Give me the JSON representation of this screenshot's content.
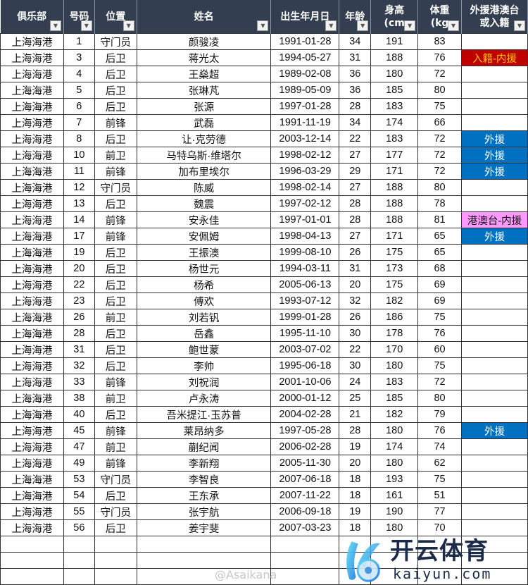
{
  "headers": [
    {
      "label": "俱乐部",
      "filter": "filter-active"
    },
    {
      "label": "号码",
      "filter": "dropdown"
    },
    {
      "label": "位置",
      "filter": "dropdown"
    },
    {
      "label": "姓名",
      "filter": "dropdown"
    },
    {
      "label": "出生年月日",
      "filter": "dropdown"
    },
    {
      "label": "年龄",
      "filter": "dropdown"
    },
    {
      "label": "身高\n(cm",
      "filter": "dropdown"
    },
    {
      "label": "体重\n(kg",
      "filter": "dropdown"
    },
    {
      "label": "外援港澳台\n或入籍",
      "filter": "dropdown"
    }
  ],
  "tag_colors": {
    "入籍-内援": "red",
    "外援": "blue",
    "港澳台-内援": "pink"
  },
  "colors": {
    "header_bg": "#333f50",
    "red": "#c00000",
    "blue": "#0070c0",
    "pink": "#ff99ff"
  },
  "rows": [
    [
      "上海海港",
      "1",
      "守门员",
      "颜骏凌",
      "1991-01-28",
      "34",
      "191",
      "83",
      ""
    ],
    [
      "上海海港",
      "3",
      "后卫",
      "蒋光太",
      "1994-05-27",
      "31",
      "188",
      "76",
      "入籍-内援"
    ],
    [
      "上海海港",
      "4",
      "后卫",
      "王燊超",
      "1989-02-08",
      "36",
      "180",
      "72",
      ""
    ],
    [
      "上海海港",
      "5",
      "后卫",
      "张琳芃",
      "1989-05-09",
      "36",
      "185",
      "80",
      ""
    ],
    [
      "上海海港",
      "6",
      "后卫",
      "张源",
      "1997-01-28",
      "28",
      "183",
      "75",
      ""
    ],
    [
      "上海海港",
      "7",
      "前锋",
      "武磊",
      "1991-11-19",
      "34",
      "174",
      "66",
      ""
    ],
    [
      "上海海港",
      "8",
      "后卫",
      "让·克劳德",
      "2003-12-14",
      "22",
      "183",
      "72",
      "外援"
    ],
    [
      "上海海港",
      "10",
      "前卫",
      "马特乌斯·维塔尔",
      "1998-02-12",
      "27",
      "177",
      "72",
      "外援"
    ],
    [
      "上海海港",
      "11",
      "前锋",
      "加布里埃尔",
      "1996-03-29",
      "29",
      "171",
      "72",
      "外援"
    ],
    [
      "上海海港",
      "12",
      "守门员",
      "陈威",
      "1998-02-14",
      "27",
      "188",
      "80",
      ""
    ],
    [
      "上海海港",
      "13",
      "后卫",
      "魏震",
      "1997-02-12",
      "28",
      "188",
      "78",
      ""
    ],
    [
      "上海海港",
      "14",
      "前锋",
      "安永佳",
      "1997-01-01",
      "28",
      "188",
      "81",
      "港澳台-内援"
    ],
    [
      "上海海港",
      "17",
      "前锋",
      "安佩姆",
      "1998-04-13",
      "27",
      "171",
      "65",
      "外援"
    ],
    [
      "上海海港",
      "19",
      "后卫",
      "王振澳",
      "1999-08-10",
      "26",
      "175",
      "65",
      ""
    ],
    [
      "上海海港",
      "20",
      "后卫",
      "杨世元",
      "1994-03-11",
      "31",
      "173",
      "68",
      ""
    ],
    [
      "上海海港",
      "22",
      "后卫",
      "杨希",
      "2005-06-13",
      "20",
      "175",
      "69",
      ""
    ],
    [
      "上海海港",
      "23",
      "后卫",
      "傅欢",
      "1993-07-12",
      "32",
      "182",
      "69",
      ""
    ],
    [
      "上海海港",
      "26",
      "前卫",
      "刘若钒",
      "1999-01-28",
      "26",
      "186",
      "75",
      ""
    ],
    [
      "上海海港",
      "28",
      "后卫",
      "岳鑫",
      "1995-11-10",
      "30",
      "178",
      "76",
      ""
    ],
    [
      "上海海港",
      "31",
      "后卫",
      "鲍世蒙",
      "2003-07-02",
      "22",
      "170",
      "60",
      ""
    ],
    [
      "上海海港",
      "32",
      "后卫",
      "李帅",
      "1995-06-18",
      "30",
      "180",
      "75",
      ""
    ],
    [
      "上海海港",
      "33",
      "前锋",
      "刘祝润",
      "2001-10-06",
      "24",
      "183",
      "72",
      ""
    ],
    [
      "上海海港",
      "38",
      "前卫",
      "卢永涛",
      "2000-01-12",
      "25",
      "185",
      "80",
      ""
    ],
    [
      "上海海港",
      "40",
      "后卫",
      "吾米提江·玉苏普",
      "2004-02-28",
      "21",
      "182",
      "79",
      ""
    ],
    [
      "上海海港",
      "45",
      "前锋",
      "莱昂纳多",
      "1997-05-28",
      "28",
      "180",
      "76",
      "外援"
    ],
    [
      "上海海港",
      "47",
      "前卫",
      "蒯纪闻",
      "2006-02-28",
      "19",
      "174",
      "74",
      ""
    ],
    [
      "上海海港",
      "49",
      "前锋",
      "李新翔",
      "2005-11-30",
      "20",
      "180",
      "62",
      ""
    ],
    [
      "上海海港",
      "53",
      "守门员",
      "李智良",
      "2007-06-18",
      "18",
      "193",
      "75",
      ""
    ],
    [
      "上海海港",
      "54",
      "后卫",
      "王东承",
      "2007-11-22",
      "18",
      "161",
      "51",
      ""
    ],
    [
      "上海海港",
      "55",
      "守门员",
      "张宇航",
      "2006-09-18",
      "19",
      "190",
      "77",
      ""
    ],
    [
      "上海海港",
      "56",
      "后卫",
      "姜宇斐",
      "2007-03-23",
      "18",
      "180",
      "70",
      ""
    ]
  ],
  "empty_rows": 3,
  "watermark": {
    "brand_cn": "开云体育",
    "brand_en": "kaiyun.com",
    "weibo": "@Asaikana"
  }
}
